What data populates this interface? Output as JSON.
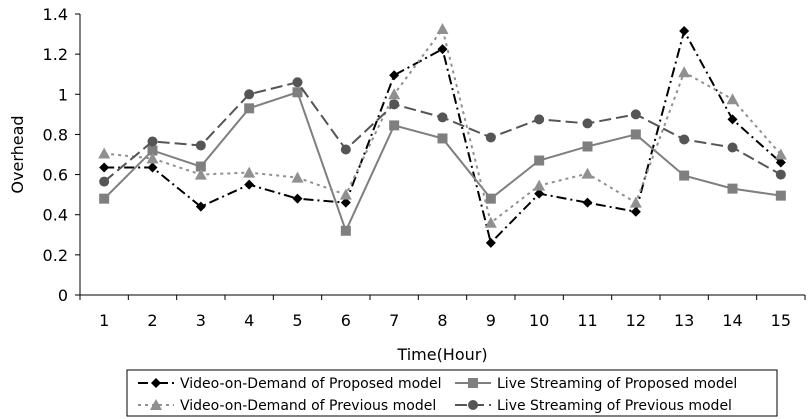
{
  "chart_data": {
    "type": "line",
    "title": "",
    "xlabel": "Time(Hour)",
    "ylabel": "Overhead",
    "categories": [
      "1",
      "2",
      "3",
      "4",
      "5",
      "6",
      "7",
      "8",
      "9",
      "10",
      "11",
      "12",
      "13",
      "14",
      "15"
    ],
    "ylim": [
      0,
      1.4
    ],
    "yticks": [
      "0",
      "0.2",
      "0.4",
      "0.6",
      "0.8",
      "1",
      "1.2",
      "1.4"
    ],
    "grid": false,
    "legend_position": "bottom",
    "series": [
      {
        "name": "Video-on-Demand of Proposed model",
        "color": "#000000",
        "marker": "diamond",
        "dash": "dashdot",
        "values": [
          0.635,
          0.635,
          0.44,
          0.55,
          0.48,
          0.46,
          1.095,
          1.225,
          0.26,
          0.505,
          0.46,
          0.415,
          1.315,
          0.875,
          0.66
        ]
      },
      {
        "name": "Live Streaming of Proposed model",
        "color": "#7f7f7f",
        "marker": "square",
        "dash": "solid",
        "values": [
          0.48,
          0.72,
          0.64,
          0.93,
          1.01,
          0.32,
          0.845,
          0.78,
          0.48,
          0.67,
          0.74,
          0.8,
          0.595,
          0.53,
          0.495
        ]
      },
      {
        "name": "Video-on-Demand of Previous model",
        "color": "#909090",
        "marker": "triangle",
        "dash": "dotted",
        "values": [
          0.705,
          0.68,
          0.6,
          0.61,
          0.585,
          0.5,
          1.0,
          1.325,
          0.36,
          0.545,
          0.605,
          0.46,
          1.11,
          0.975,
          0.7
        ]
      },
      {
        "name": "Live Streaming of Previous model",
        "color": "#555555",
        "marker": "circle",
        "dash": "longdash",
        "values": [
          0.565,
          0.765,
          0.745,
          1.0,
          1.06,
          0.725,
          0.95,
          0.885,
          0.785,
          0.875,
          0.855,
          0.9,
          0.775,
          0.735,
          0.6
        ]
      }
    ]
  }
}
